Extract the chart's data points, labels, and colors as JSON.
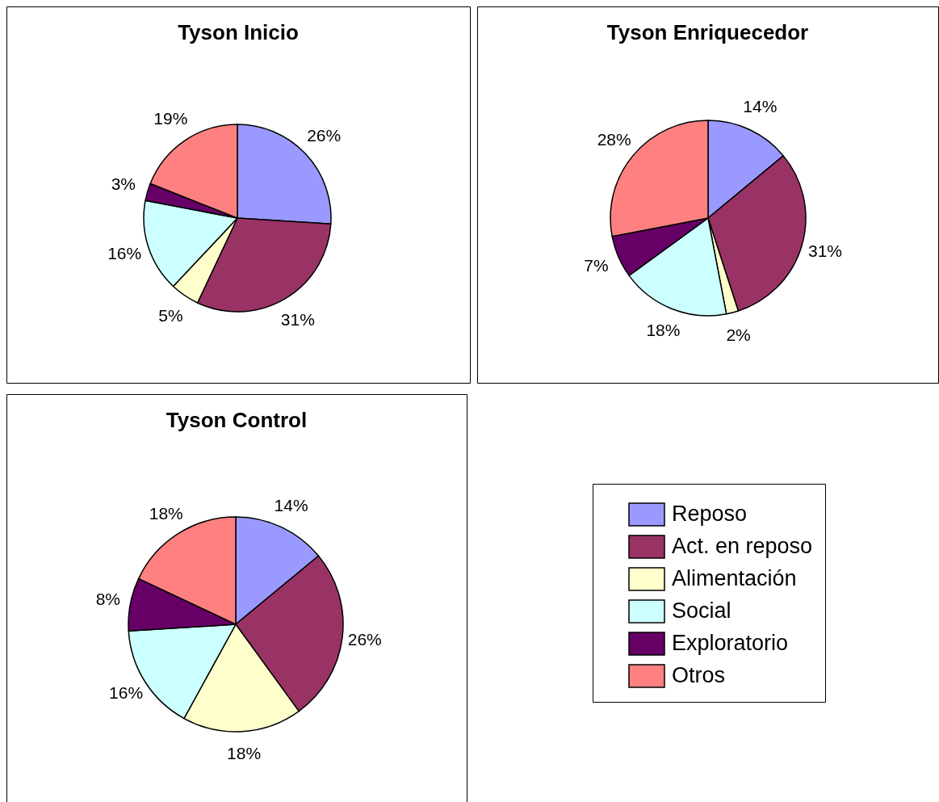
{
  "chart_data": [
    {
      "type": "pie",
      "title": "Tyson Inicio",
      "categories": [
        null,
        null,
        null,
        null,
        null,
        null
      ],
      "values": [
        26,
        31,
        5,
        16,
        3,
        19
      ],
      "colors": [
        "#9999ff",
        "#993366",
        "#ffffcc",
        "#ccffff",
        "#660066",
        "#ff8080"
      ],
      "value_labels": [
        "26%",
        "31%",
        "5%",
        "16%",
        "3%",
        "19%"
      ],
      "legend": false
    },
    {
      "type": "pie",
      "title": "Tyson Enriquecedor",
      "categories": [
        null,
        null,
        null,
        null,
        null,
        null
      ],
      "values": [
        14,
        31,
        2,
        18,
        7,
        28
      ],
      "colors": [
        "#9999ff",
        "#993366",
        "#ffffcc",
        "#ccffff",
        "#660066",
        "#ff8080"
      ],
      "value_labels": [
        "14%",
        "31%",
        "2%",
        "18%",
        "7%",
        "28%"
      ],
      "legend": false
    },
    {
      "type": "pie",
      "title": "Tyson Control",
      "categories": [
        "Reposo",
        "Act. en reposo",
        "Alimentación",
        "Social",
        "Exploratorio",
        "Otros"
      ],
      "values": [
        14,
        26,
        18,
        16,
        8,
        18
      ],
      "colors": [
        "#9999ff",
        "#993366",
        "#ffffcc",
        "#ccffff",
        "#660066",
        "#ff8080"
      ],
      "value_labels": [
        "14%",
        "26%",
        "18%",
        "16%",
        "8%",
        "18%"
      ],
      "legend": "right"
    }
  ]
}
